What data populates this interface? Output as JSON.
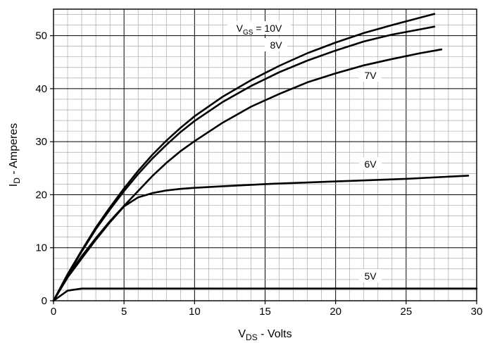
{
  "chart_data": {
    "type": "line",
    "xlabel": {
      "main": "V",
      "sub": "DS",
      "rest": " - Volts"
    },
    "ylabel": {
      "main": "I",
      "sub": "D",
      "rest": " - Amperes"
    },
    "xlim": [
      0,
      30
    ],
    "ylim": [
      0,
      55
    ],
    "xticks": [
      0,
      5,
      10,
      15,
      20,
      25,
      30
    ],
    "yticks": [
      0,
      10,
      20,
      30,
      40,
      50
    ],
    "grid": true,
    "legend": "none",
    "series": [
      {
        "name": "V_GS = 10V",
        "label": {
          "main": "V",
          "sub": "GS",
          "rest": " = 10V"
        },
        "x": [
          0,
          1,
          2,
          3,
          4,
          5,
          6,
          7,
          8,
          9,
          10,
          12,
          14,
          16,
          18,
          20,
          22,
          24,
          26,
          27
        ],
        "y": [
          0,
          5,
          9.5,
          13.8,
          17.6,
          21.2,
          24.5,
          27.5,
          30.2,
          32.6,
          34.8,
          38.5,
          41.6,
          44.3,
          46.7,
          48.7,
          50.5,
          52,
          53.4,
          54.1
        ]
      },
      {
        "name": "8V",
        "label": {
          "main": "8V",
          "sub": "",
          "rest": ""
        },
        "x": [
          0,
          1,
          2,
          3,
          4,
          5,
          6,
          7,
          8,
          9,
          10,
          12,
          14,
          16,
          18,
          20,
          22,
          24,
          26,
          27
        ],
        "y": [
          0,
          4.9,
          9.3,
          13.5,
          17.2,
          20.7,
          23.9,
          26.8,
          29.4,
          31.8,
          33.9,
          37.5,
          40.5,
          43.1,
          45.3,
          47.2,
          48.9,
          50.2,
          51.2,
          51.7
        ]
      },
      {
        "name": "7V",
        "label": {
          "main": "7V",
          "sub": "",
          "rest": ""
        },
        "x": [
          0,
          1,
          2,
          3,
          4,
          5,
          6,
          7,
          8,
          9,
          10,
          12,
          14,
          16,
          18,
          20,
          22,
          24,
          26,
          27.5
        ],
        "y": [
          0,
          4.6,
          8.4,
          11.8,
          15,
          17.9,
          20.7,
          23.5,
          26,
          28.2,
          30.1,
          33.6,
          36.6,
          39,
          41.2,
          42.9,
          44.4,
          45.6,
          46.7,
          47.4
        ]
      },
      {
        "name": "6V",
        "label": {
          "main": "6V",
          "sub": "",
          "rest": ""
        },
        "x": [
          0,
          1,
          2,
          3,
          4,
          5,
          6,
          7,
          8,
          9,
          10,
          12,
          15,
          20,
          25,
          29.4
        ],
        "y": [
          0,
          4.4,
          8,
          11.5,
          14.8,
          17.8,
          19.5,
          20.3,
          20.8,
          21.1,
          21.3,
          21.6,
          22,
          22.5,
          23,
          23.6
        ]
      },
      {
        "name": "5V",
        "label": {
          "main": "5V",
          "sub": "",
          "rest": ""
        },
        "x": [
          0,
          1,
          2,
          3,
          5,
          10,
          20,
          30
        ],
        "y": [
          0,
          1.9,
          2.3,
          2.3,
          2.3,
          2.3,
          2.3,
          2.3
        ]
      }
    ]
  }
}
